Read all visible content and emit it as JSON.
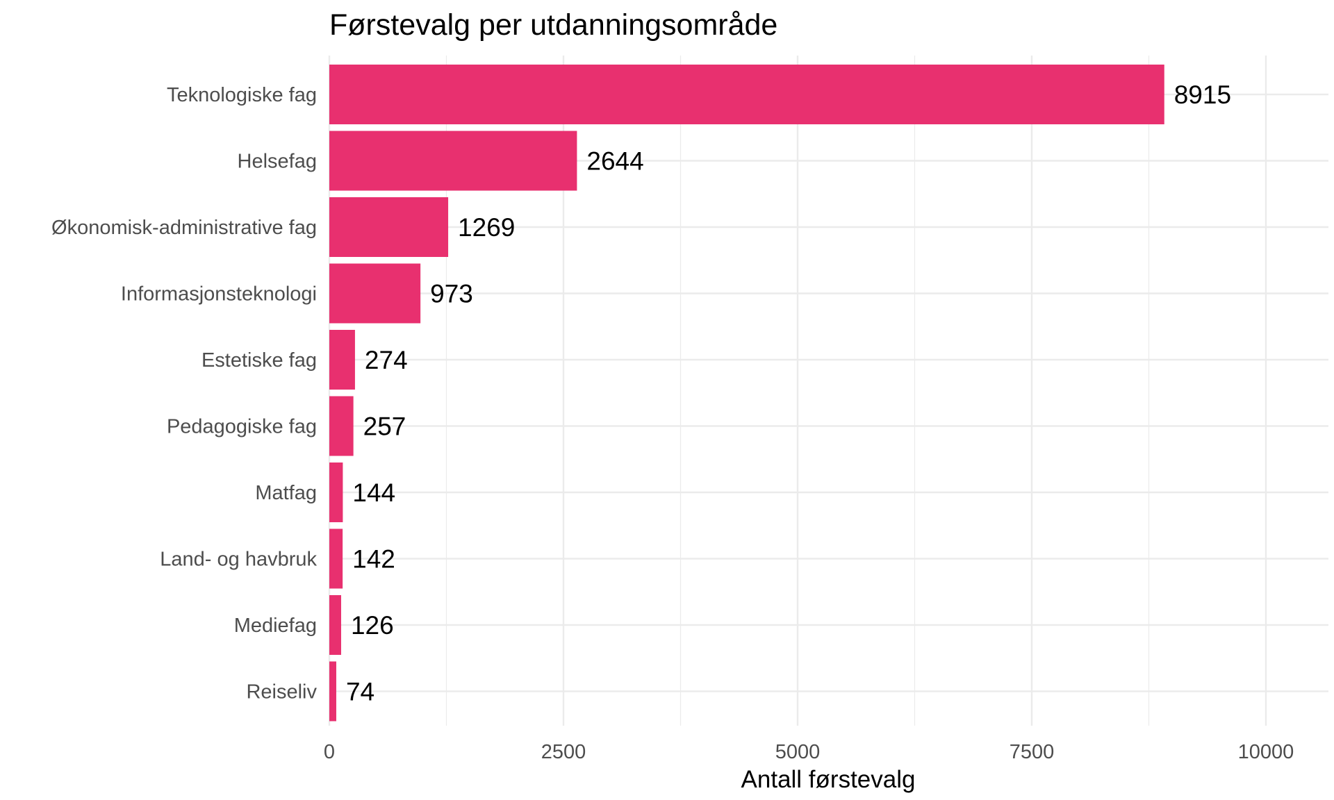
{
  "chart_data": {
    "type": "bar",
    "orientation": "horizontal",
    "title": "Førstevalg per utdanningsområde",
    "xlabel": "Antall førstevalg",
    "ylabel": "",
    "categories": [
      "Teknologiske fag",
      "Helsefag",
      "Økonomisk-administrative fag",
      "Informasjonsteknologi",
      "Estetiske fag",
      "Pedagogiske fag",
      "Matfag",
      "Land- og havbruk",
      "Mediefag",
      "Reiseliv"
    ],
    "values": [
      8915,
      2644,
      1269,
      973,
      274,
      257,
      144,
      142,
      126,
      74
    ],
    "data_labels": [
      "8915",
      "2644",
      "1269",
      "973",
      "274",
      "257",
      "144",
      "142",
      "126",
      "74"
    ],
    "xlim": [
      0,
      10000
    ],
    "x_ticks": [
      0,
      2500,
      5000,
      7500,
      10000
    ],
    "x_tick_labels": [
      "0",
      "2500",
      "5000",
      "7500",
      "10000"
    ],
    "grid": true,
    "legend": "none",
    "bar_color": "#E8306F",
    "grid_color": "#EBEBEB"
  }
}
